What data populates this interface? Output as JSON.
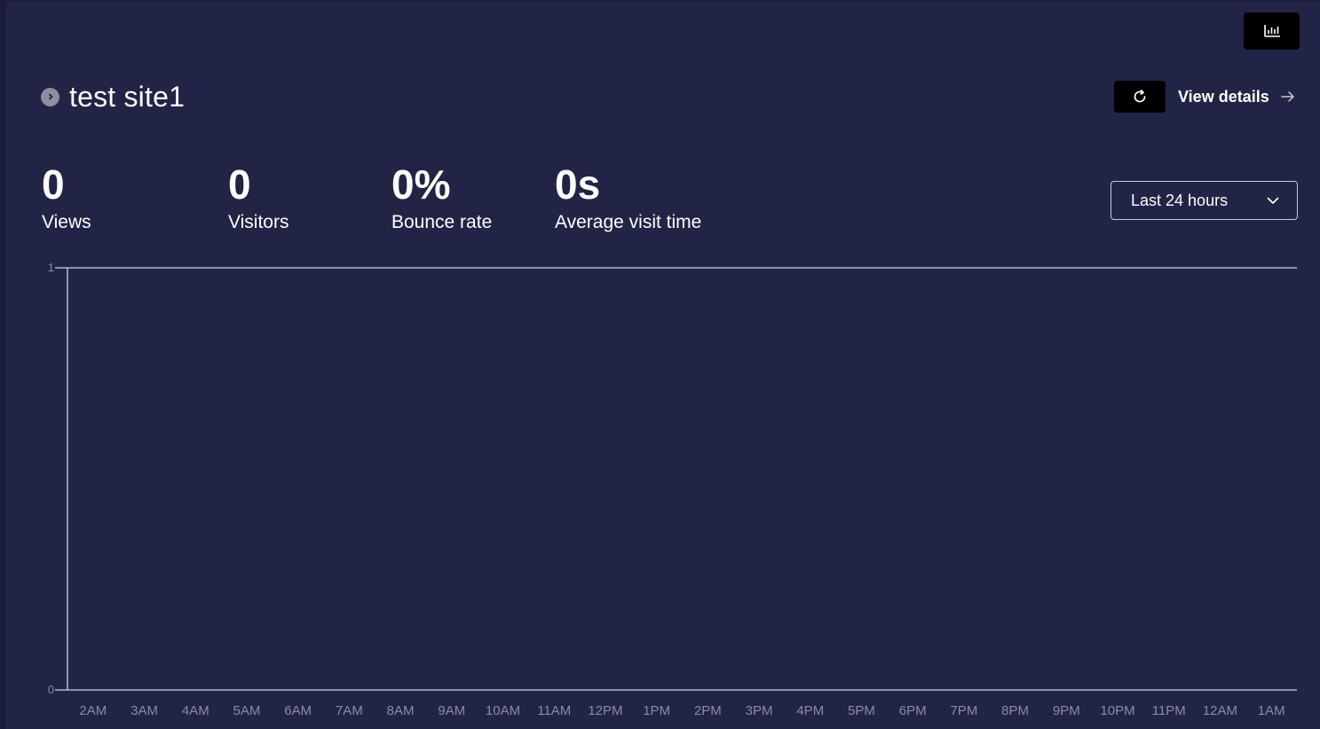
{
  "toolbar": {
    "chart_toggle_icon": "bar-chart-icon"
  },
  "site": {
    "name": "test site1",
    "icon": "chevron-right-icon"
  },
  "actions": {
    "refresh_icon": "refresh-icon",
    "view_details_label": "View details",
    "view_details_icon": "arrow-right-icon"
  },
  "metrics": [
    {
      "value": "0",
      "label": "Views"
    },
    {
      "value": "0",
      "label": "Visitors"
    },
    {
      "value": "0%",
      "label": "Bounce rate"
    },
    {
      "value": "0s",
      "label": "Average visit time"
    }
  ],
  "range": {
    "selected": "Last 24 hours"
  },
  "colors": {
    "background": "#222446",
    "axis": "#d0d1dc",
    "tick_label": "#8a8ba0"
  },
  "chart_data": {
    "type": "bar",
    "categories": [
      "2AM",
      "3AM",
      "4AM",
      "5AM",
      "6AM",
      "7AM",
      "8AM",
      "9AM",
      "10AM",
      "11AM",
      "12PM",
      "1PM",
      "2PM",
      "3PM",
      "4PM",
      "5PM",
      "6PM",
      "7PM",
      "8PM",
      "9PM",
      "10PM",
      "11PM",
      "12AM",
      "1AM"
    ],
    "series": [
      {
        "values": [
          0,
          0,
          0,
          0,
          0,
          0,
          0,
          0,
          0,
          0,
          0,
          0,
          0,
          0,
          0,
          0,
          0,
          0,
          0,
          0,
          0,
          0,
          0,
          0
        ]
      }
    ],
    "yticks": [
      0,
      1
    ],
    "ylim": [
      0,
      1
    ],
    "grid": false
  }
}
